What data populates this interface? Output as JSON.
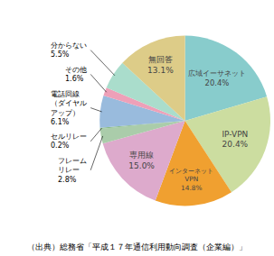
{
  "chart_data": {
    "type": "pie",
    "categories": [
      "広域イーサネット",
      "IP-VPN",
      "インターネット\nVPN",
      "専用線",
      "フレーム\nリレー",
      "セルリレー",
      "電話回線\n（ダイヤル\nアップ）",
      "その他",
      "分からない",
      "無回答"
    ],
    "values": [
      20.4,
      20.4,
      14.8,
      15.0,
      2.8,
      0.2,
      6.1,
      1.6,
      5.5,
      13.1
    ],
    "value_labels": [
      "20.4%",
      "20.4%",
      "14.8%",
      "15.0%",
      "2.8%",
      "0.2%",
      "6.1%",
      "1.6%",
      "5.5%",
      "13.1%"
    ],
    "colors": [
      "#88CCCC",
      "#CCDDA0",
      "#F0A030",
      "#DDAACC",
      "#AACCAA",
      "#88BB88",
      "#99BBDD",
      "#EEA0B8",
      "#AADDCC",
      "#DDCC88"
    ],
    "annotations": [
      "（出典）総務省「平成１７年通信利用動向調査（企業編）」"
    ]
  }
}
